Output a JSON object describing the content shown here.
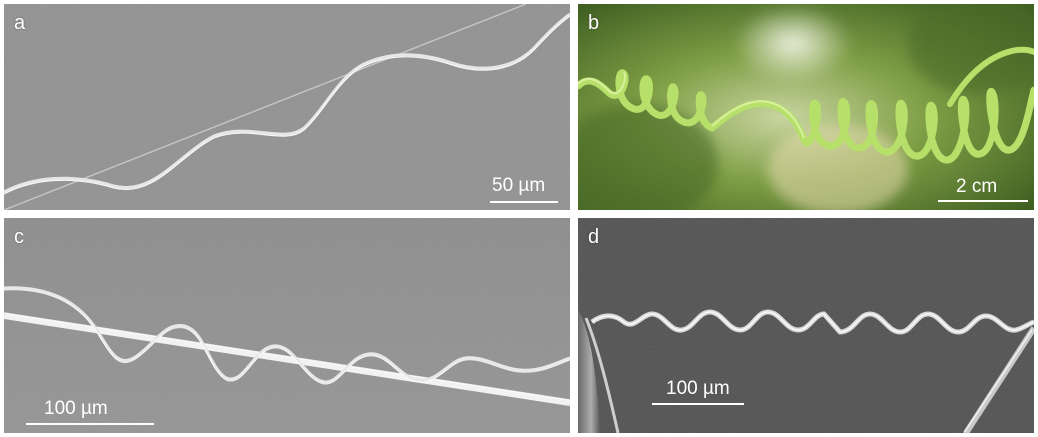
{
  "panels": [
    {
      "label": "a",
      "scale_text": "50 µm"
    },
    {
      "label": "b",
      "scale_text": "2 cm"
    },
    {
      "label": "c",
      "scale_text": "100 µm"
    },
    {
      "label": "d",
      "scale_text": "100 µm"
    }
  ]
}
